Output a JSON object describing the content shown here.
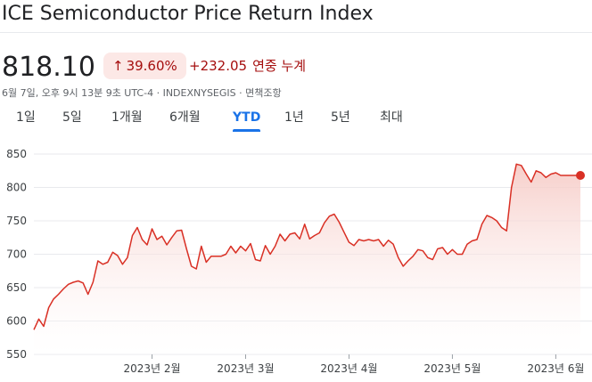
{
  "header": {
    "title": "ICE Semiconductor Price Return Index",
    "price": "818.10",
    "change_percent": "39.60%",
    "change_arrow": "up-arrow-icon",
    "change_value": "+232.05",
    "change_label": "연중 누계",
    "meta": "6월 7일, 오후 9시 13분 9초 UTC-4 · INDEXNYSEGIS · 면책조항"
  },
  "tabs": [
    {
      "label": "1일"
    },
    {
      "label": "5일"
    },
    {
      "label": "1개월"
    },
    {
      "label": "6개월"
    },
    {
      "label": "YTD",
      "active": true
    },
    {
      "label": "1년"
    },
    {
      "label": "5년"
    },
    {
      "label": "최대"
    }
  ],
  "colors": {
    "line": "#d93025",
    "fill_top": "#f6c9c4",
    "grid": "#e8eaed",
    "badge_bg": "#fce8e6",
    "badge_text": "#a50e0e",
    "active_tab": "#1a73e8"
  },
  "chart_data": {
    "type": "area",
    "ylim": [
      550,
      850
    ],
    "yticks": [
      850,
      800,
      750,
      700,
      650,
      600,
      550
    ],
    "xtick_labels": [
      "2023년 2월",
      "2023년 3월",
      "2023년 4월",
      "2023년 5월",
      "2023년 6월"
    ],
    "xtick_positions": [
      24,
      43,
      64,
      85,
      106
    ],
    "grid": "horizontal",
    "legend": "none",
    "series": [
      {
        "x": [
          0,
          1,
          2,
          3,
          4,
          5,
          6,
          7,
          8,
          9,
          10,
          11,
          12,
          13,
          14,
          15,
          16,
          17,
          18,
          19,
          20,
          21,
          22,
          23,
          24,
          25,
          26,
          27,
          28,
          29,
          30,
          31,
          32,
          33,
          34,
          35,
          36,
          37,
          38,
          39,
          40,
          41,
          42,
          43,
          44,
          45,
          46,
          47,
          48,
          49,
          50,
          51,
          52,
          53,
          54,
          55,
          56,
          57,
          58,
          59,
          60,
          61,
          62,
          63,
          64,
          65,
          66,
          67,
          68,
          69,
          70,
          71,
          72,
          73,
          74,
          75,
          76,
          77,
          78,
          79,
          80,
          81,
          82,
          83,
          84,
          85,
          86,
          87,
          88,
          89,
          90,
          91,
          92,
          93,
          94,
          95,
          96,
          97,
          98,
          99,
          100,
          101,
          102,
          103,
          104,
          105,
          106,
          107,
          108,
          109,
          110,
          111
        ],
        "values": [
          587,
          603,
          592,
          620,
          633,
          640,
          648,
          655,
          658,
          660,
          657,
          640,
          658,
          690,
          685,
          688,
          703,
          698,
          685,
          695,
          728,
          740,
          722,
          714,
          738,
          722,
          727,
          714,
          725,
          735,
          736,
          708,
          682,
          678,
          712,
          688,
          697,
          697,
          697,
          700,
          712,
          702,
          712,
          705,
          716,
          692,
          690,
          713,
          700,
          712,
          730,
          720,
          730,
          732,
          723,
          745,
          723,
          728,
          732,
          747,
          757,
          760,
          748,
          733,
          718,
          713,
          722,
          720,
          722,
          720,
          722,
          712,
          721,
          715,
          695,
          682,
          690,
          697,
          707,
          705,
          695,
          692,
          708,
          710,
          700,
          707,
          700,
          700,
          715,
          720,
          722,
          745,
          758,
          755,
          750,
          740,
          735,
          800,
          835,
          833,
          820,
          808,
          825,
          822,
          815,
          820,
          822,
          818,
          818,
          818,
          818,
          818
        ]
      }
    ]
  }
}
